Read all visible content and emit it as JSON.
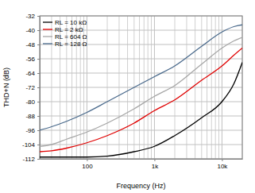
{
  "chart_data": {
    "type": "line",
    "x_label": "Frequency (Hz)",
    "y_label": "THD+N (dB)",
    "log": "x",
    "grid": true,
    "legend": "top-left",
    "xlim": [
      20,
      20000
    ],
    "ylim": [
      -112,
      -32
    ],
    "xticks": [
      100,
      {
        "value": 1000,
        "label": "1k"
      },
      {
        "value": 10000,
        "label": "10k"
      }
    ],
    "yticks": [
      -112,
      -104,
      -96,
      -88,
      -80,
      -72,
      -64,
      -56,
      -48,
      -40,
      -32
    ],
    "x": [
      20,
      30,
      50,
      100,
      200,
      500,
      1000,
      2000,
      5000,
      10000,
      15000,
      20000
    ],
    "series": [
      {
        "name": "RL = 10 kΩ",
        "color": "#000000",
        "values": [
          -111,
          -111,
          -111,
          -111,
          -110.5,
          -108,
          -105,
          -99,
          -89,
          -80,
          -70,
          -58
        ]
      },
      {
        "name": "RL = 2 kΩ",
        "color": "#e00000",
        "values": [
          -108,
          -107.5,
          -106,
          -103,
          -99,
          -92,
          -85,
          -79,
          -68,
          -60,
          -54,
          -50
        ]
      },
      {
        "name": "RL = 604 Ω",
        "color": "#a6a6a6",
        "values": [
          -105,
          -104,
          -101,
          -97,
          -92,
          -84,
          -77,
          -71,
          -59,
          -50,
          -46,
          -44
        ]
      },
      {
        "name": "RL = 128 Ω",
        "color": "#4a6a8c",
        "values": [
          -96,
          -94,
          -91,
          -86,
          -80,
          -72,
          -66,
          -60,
          -49,
          -41,
          -38,
          -37
        ]
      }
    ]
  }
}
